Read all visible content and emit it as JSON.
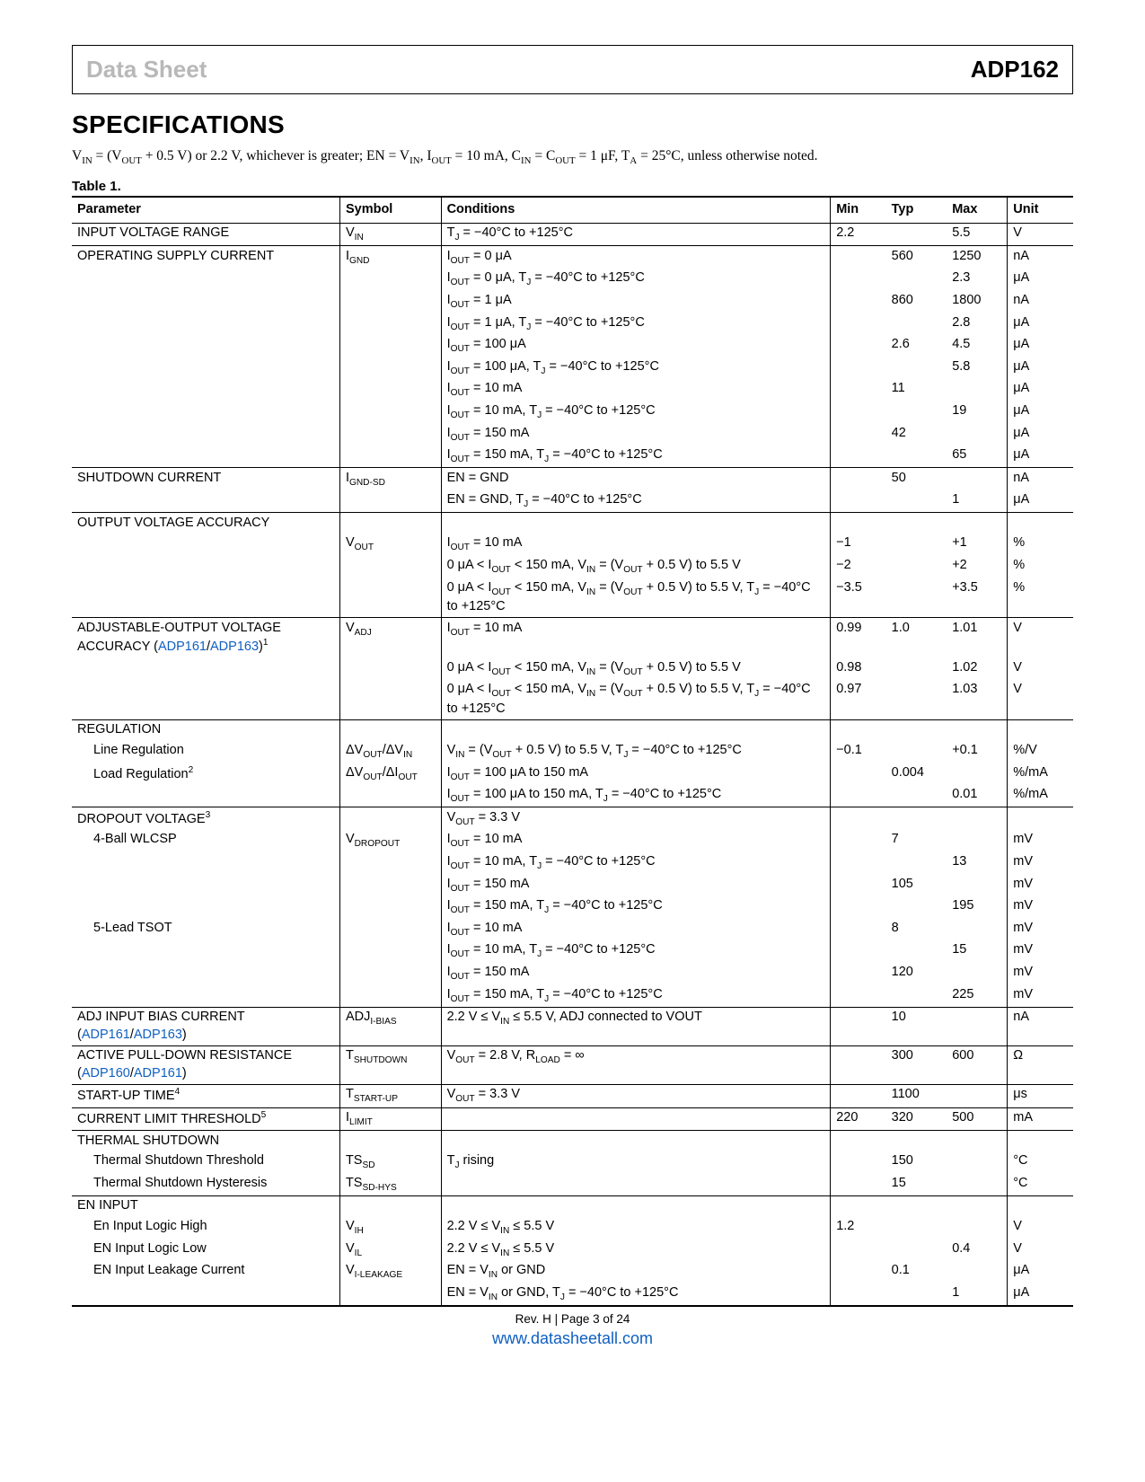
{
  "header": {
    "left": "Data Sheet",
    "right": "ADP162"
  },
  "section_title": "SPECIFICATIONS",
  "condition_html": "V<sub>IN</sub> = (V<sub>OUT</sub> + 0.5 V) or 2.2 V, whichever is greater; EN = V<sub>IN</sub>, I<sub>OUT</sub> = 10 mA, C<sub>IN</sub> = C<sub>OUT</sub> = 1 μF, T<sub>A</sub> = 25°C, unless otherwise noted.",
  "table_label": "Table 1.",
  "columns": [
    "Parameter",
    "Symbol",
    "Conditions",
    "Min",
    "Typ",
    "Max",
    "Unit"
  ],
  "footer_rev": "Rev. H | Page 3 of 24",
  "footer_url": "www.datasheetall.com",
  "rows": [
    {
      "g": 1,
      "p": "INPUT VOLTAGE RANGE",
      "s": "V<sub>IN</sub>",
      "c": "T<sub>J</sub> = −40°C to +125°C",
      "min": "2.2",
      "typ": "",
      "max": "5.5",
      "u": "V"
    },
    {
      "g": 1,
      "p": "OPERATING SUPPLY CURRENT",
      "s": "I<sub>GND</sub>",
      "c": "I<sub>OUT</sub> = 0 μA",
      "min": "",
      "typ": "560",
      "max": "1250",
      "u": "nA"
    },
    {
      "p": "",
      "s": "",
      "c": "I<sub>OUT</sub> = 0 μA, T<sub>J</sub> = −40°C to +125°C",
      "min": "",
      "typ": "",
      "max": "2.3",
      "u": "μA"
    },
    {
      "p": "",
      "s": "",
      "c": "I<sub>OUT</sub> = 1 μA",
      "min": "",
      "typ": "860",
      "max": "1800",
      "u": "nA"
    },
    {
      "p": "",
      "s": "",
      "c": "I<sub>OUT</sub> = 1 μA, T<sub>J</sub> = −40°C to +125°C",
      "min": "",
      "typ": "",
      "max": "2.8",
      "u": "μA"
    },
    {
      "p": "",
      "s": "",
      "c": "I<sub>OUT</sub> = 100 μA",
      "min": "",
      "typ": "2.6",
      "max": "4.5",
      "u": "μA"
    },
    {
      "p": "",
      "s": "",
      "c": "I<sub>OUT</sub> = 100 μA, T<sub>J</sub> = −40°C to +125°C",
      "min": "",
      "typ": "",
      "max": "5.8",
      "u": "μA"
    },
    {
      "p": "",
      "s": "",
      "c": "I<sub>OUT</sub> = 10 mA",
      "min": "",
      "typ": "11",
      "max": "",
      "u": "μA"
    },
    {
      "p": "",
      "s": "",
      "c": "I<sub>OUT</sub> = 10 mA, T<sub>J</sub> = −40°C to +125°C",
      "min": "",
      "typ": "",
      "max": "19",
      "u": "μA"
    },
    {
      "p": "",
      "s": "",
      "c": "I<sub>OUT</sub> = 150 mA",
      "min": "",
      "typ": "42",
      "max": "",
      "u": "μA"
    },
    {
      "p": "",
      "s": "",
      "c": "I<sub>OUT</sub> = 150 mA, T<sub>J</sub> = −40°C to +125°C",
      "min": "",
      "typ": "",
      "max": "65",
      "u": "μA"
    },
    {
      "g": 1,
      "p": "SHUTDOWN CURRENT",
      "s": "I<sub>GND-SD</sub>",
      "c": "EN = GND",
      "min": "",
      "typ": "50",
      "max": "",
      "u": "nA"
    },
    {
      "p": "",
      "s": "",
      "c": "EN = GND, T<sub>J</sub> = −40°C to +125°C",
      "min": "",
      "typ": "",
      "max": "1",
      "u": "μA"
    },
    {
      "g": 1,
      "p": "OUTPUT VOLTAGE ACCURACY",
      "s": "",
      "c": "",
      "min": "",
      "typ": "",
      "max": "",
      "u": ""
    },
    {
      "p": "",
      "s": "V<sub>OUT</sub>",
      "c": "I<sub>OUT</sub> = 10 mA",
      "min": "−1",
      "typ": "",
      "max": "+1",
      "u": "%"
    },
    {
      "p": "",
      "s": "",
      "c": "0 μA &lt; I<sub>OUT</sub> &lt; 150 mA, V<sub>IN</sub> = (V<sub>OUT</sub> + 0.5 V) to 5.5 V",
      "min": "−2",
      "typ": "",
      "max": "+2",
      "u": "%"
    },
    {
      "p": "",
      "s": "",
      "c": "0 μA &lt; I<sub>OUT</sub> &lt; 150 mA, V<sub>IN</sub> = (V<sub>OUT</sub> + 0.5 V) to 5.5 V, T<sub>J</sub> = −40°C to +125°C",
      "min": "−3.5",
      "typ": "",
      "max": "+3.5",
      "u": "%"
    },
    {
      "g": 1,
      "p": "ADJUSTABLE-OUTPUT VOLTAGE ACCURACY (<a class='link'>ADP161</a>/<a class='link'>ADP163</a>)<sup>1</sup>",
      "indent_after": true,
      "s": "V<sub>ADJ</sub>",
      "c": "I<sub>OUT</sub> = 10 mA",
      "min": "0.99",
      "typ": "1.0",
      "max": "1.01",
      "u": "V"
    },
    {
      "p": "",
      "s": "",
      "c": "0 μA &lt; I<sub>OUT</sub> &lt; 150 mA, V<sub>IN</sub> = (V<sub>OUT</sub> + 0.5 V) to 5.5 V",
      "min": "0.98",
      "typ": "",
      "max": "1.02",
      "u": "V"
    },
    {
      "p": "",
      "s": "",
      "c": "0 μA &lt; I<sub>OUT</sub> &lt; 150 mA, V<sub>IN</sub> = (V<sub>OUT</sub> + 0.5 V) to 5.5 V, T<sub>J</sub> = −40°C to +125°C",
      "min": "0.97",
      "typ": "",
      "max": "1.03",
      "u": "V"
    },
    {
      "g": 1,
      "p": "REGULATION",
      "s": "",
      "c": "",
      "min": "",
      "typ": "",
      "max": "",
      "u": ""
    },
    {
      "p": "Line Regulation",
      "i": 1,
      "s": "ΔV<sub>OUT</sub>/ΔV<sub>IN</sub>",
      "c": "V<sub>IN</sub> = (V<sub>OUT</sub> + 0.5 V) to 5.5 V, T<sub>J</sub> = −40°C to +125°C",
      "min": "−0.1",
      "typ": "",
      "max": "+0.1",
      "u": "%/V"
    },
    {
      "p": "Load Regulation<sup>2</sup>",
      "i": 1,
      "s": "ΔV<sub>OUT</sub>/ΔI<sub>OUT</sub>",
      "c": "I<sub>OUT</sub> = 100 μA to 150 mA",
      "min": "",
      "typ": "0.004",
      "max": "",
      "u": "%/mA"
    },
    {
      "p": "",
      "s": "",
      "c": "I<sub>OUT</sub> = 100 μA to 150 mA, T<sub>J</sub> = −40°C to +125°C",
      "min": "",
      "typ": "",
      "max": "0.01",
      "u": "%/mA"
    },
    {
      "g": 1,
      "p": "DROPOUT VOLTAGE<sup>3</sup>",
      "s": "",
      "c": "V<sub>OUT</sub> = 3.3 V",
      "min": "",
      "typ": "",
      "max": "",
      "u": ""
    },
    {
      "p": "4-Ball WLCSP",
      "i": 1,
      "s": "V<sub>DROPOUT</sub>",
      "c": "I<sub>OUT</sub> = 10 mA",
      "min": "",
      "typ": "7",
      "max": "",
      "u": "mV"
    },
    {
      "p": "",
      "s": "",
      "c": "I<sub>OUT</sub> = 10 mA, T<sub>J</sub> = −40°C to +125°C",
      "min": "",
      "typ": "",
      "max": "13",
      "u": "mV"
    },
    {
      "p": "",
      "s": "",
      "c": "I<sub>OUT</sub> = 150 mA",
      "min": "",
      "typ": "105",
      "max": "",
      "u": "mV"
    },
    {
      "p": "",
      "s": "",
      "c": "I<sub>OUT</sub> = 150 mA, T<sub>J</sub> = −40°C to +125°C",
      "min": "",
      "typ": "",
      "max": "195",
      "u": "mV"
    },
    {
      "p": "5-Lead TSOT",
      "i": 1,
      "s": "",
      "c": "I<sub>OUT</sub> = 10 mA",
      "min": "",
      "typ": "8",
      "max": "",
      "u": "mV"
    },
    {
      "p": "",
      "s": "",
      "c": "I<sub>OUT</sub> = 10 mA, T<sub>J</sub> = −40°C to +125°C",
      "min": "",
      "typ": "",
      "max": "15",
      "u": "mV"
    },
    {
      "p": "",
      "s": "",
      "c": "I<sub>OUT</sub> = 150 mA",
      "min": "",
      "typ": "120",
      "max": "",
      "u": "mV"
    },
    {
      "p": "",
      "s": "",
      "c": "I<sub>OUT</sub> = 150 mA, T<sub>J</sub> = −40°C to +125°C",
      "min": "",
      "typ": "",
      "max": "225",
      "u": "mV"
    },
    {
      "g": 1,
      "p": "ADJ INPUT BIAS CURRENT (<a class='link'>ADP161</a>/<a class='link'>ADP163</a>)",
      "s": "ADJ<sub>I-BIAS</sub>",
      "c": "2.2 V ≤ V<sub>IN</sub> ≤ 5.5 V, ADJ connected to VOUT",
      "min": "",
      "typ": "10",
      "max": "",
      "u": "nA"
    },
    {
      "g": 1,
      "p": "ACTIVE PULL-DOWN RESISTANCE (<a class='link'>ADP160</a>/<a class='link'>ADP161</a>)",
      "s": "T<sub>SHUTDOWN</sub>",
      "c": "V<sub>OUT</sub> = 2.8 V, R<sub>LOAD</sub> = ∞",
      "min": "",
      "typ": "300",
      "max": "600",
      "u": "Ω"
    },
    {
      "g": 1,
      "p": "START-UP TIME<sup>4</sup>",
      "s": "T<sub>START-UP</sub>",
      "c": "V<sub>OUT</sub> = 3.3 V",
      "min": "",
      "typ": "1100",
      "max": "",
      "u": "μs"
    },
    {
      "g": 1,
      "p": "CURRENT LIMIT THRESHOLD<sup>5</sup>",
      "s": "I<sub>LIMIT</sub>",
      "c": "",
      "min": "220",
      "typ": "320",
      "max": "500",
      "u": "mA"
    },
    {
      "g": 1,
      "p": "THERMAL SHUTDOWN",
      "s": "",
      "c": "",
      "min": "",
      "typ": "",
      "max": "",
      "u": ""
    },
    {
      "p": "Thermal Shutdown Threshold",
      "i": 1,
      "s": "TS<sub>SD</sub>",
      "c": "T<sub>J</sub> rising",
      "min": "",
      "typ": "150",
      "max": "",
      "u": "°C"
    },
    {
      "p": "Thermal Shutdown Hysteresis",
      "i": 1,
      "s": "TS<sub>SD-HYS</sub>",
      "c": "",
      "min": "",
      "typ": "15",
      "max": "",
      "u": "°C"
    },
    {
      "g": 1,
      "p": "EN INPUT",
      "s": "",
      "c": "",
      "min": "",
      "typ": "",
      "max": "",
      "u": ""
    },
    {
      "p": "En Input Logic High",
      "i": 1,
      "s": "V<sub>IH</sub>",
      "c": "2.2 V ≤ V<sub>IN</sub> ≤ 5.5 V",
      "min": "1.2",
      "typ": "",
      "max": "",
      "u": "V"
    },
    {
      "p": "EN Input Logic Low",
      "i": 1,
      "s": "V<sub>IL</sub>",
      "c": "2.2 V ≤ V<sub>IN</sub> ≤ 5.5 V",
      "min": "",
      "typ": "",
      "max": "0.4",
      "u": "V"
    },
    {
      "p": "EN Input Leakage Current",
      "i": 1,
      "s": "V<sub>I-LEAKAGE</sub>",
      "c": "EN = V<sub>IN</sub> or GND",
      "min": "",
      "typ": "0.1",
      "max": "",
      "u": "μA"
    },
    {
      "p": "",
      "s": "",
      "c": "EN = V<sub>IN</sub> or GND, T<sub>J</sub> = −40°C to +125°C",
      "min": "",
      "typ": "",
      "max": "1",
      "u": "μA",
      "last": 1
    }
  ]
}
